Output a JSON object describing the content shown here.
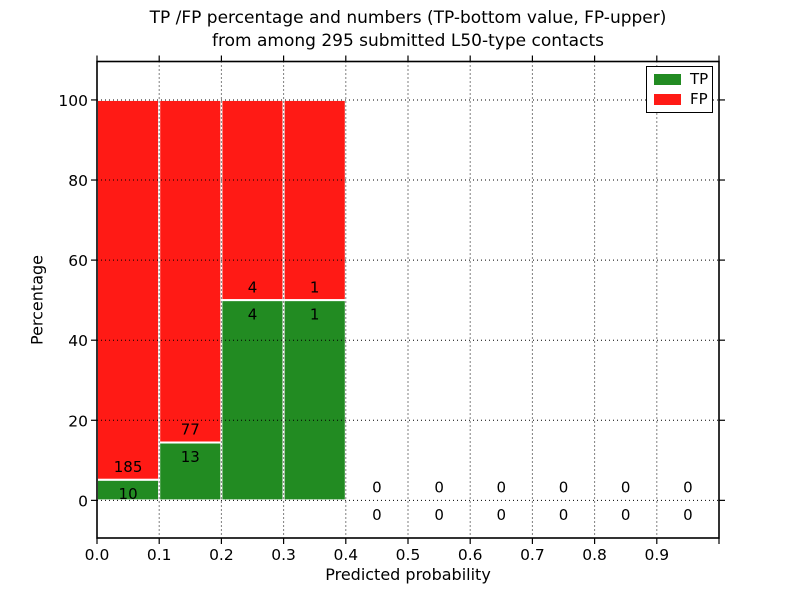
{
  "chart_data": {
    "type": "bar",
    "stacked": true,
    "normalized_to_percent": true,
    "title_line1": "TP /FP percentage and numbers (TP-bottom value, FP-upper)",
    "title_line2": "from among 295 submitted L50-type contacts",
    "xlabel": "Predicted probability",
    "ylabel": "Percentage",
    "total_contacts": 295,
    "bin_width": 0.1,
    "x_starts": [
      0.0,
      0.1,
      0.2,
      0.3,
      0.4,
      0.5,
      0.6,
      0.7,
      0.8,
      0.9
    ],
    "series": [
      {
        "name": "TP",
        "color": "#228b22",
        "values": [
          10,
          13,
          4,
          1,
          0,
          0,
          0,
          0,
          0,
          0
        ]
      },
      {
        "name": "FP",
        "color": "#ff1a15",
        "values": [
          185,
          77,
          4,
          1,
          0,
          0,
          0,
          0,
          0,
          0
        ]
      }
    ],
    "tp_percent_by_bin": [
      5.1,
      14.4,
      50.0,
      50.0,
      0,
      0,
      0,
      0,
      0,
      0
    ],
    "x_tick_labels": [
      "0.0",
      "0.1",
      "0.2",
      "0.3",
      "0.4",
      "0.5",
      "0.6",
      "0.7",
      "0.8",
      "0.9"
    ],
    "y_tick_values": [
      0,
      20,
      40,
      60,
      80,
      100
    ],
    "xlim": [
      0.0,
      1.0
    ],
    "ylim": [
      -9.4,
      109.6
    ],
    "grid": true,
    "grid_style": "dotted",
    "legend_position": "upper right",
    "bar_edge_color": "#ffffff",
    "axis_color": "#000000",
    "label_color": "#000000"
  }
}
